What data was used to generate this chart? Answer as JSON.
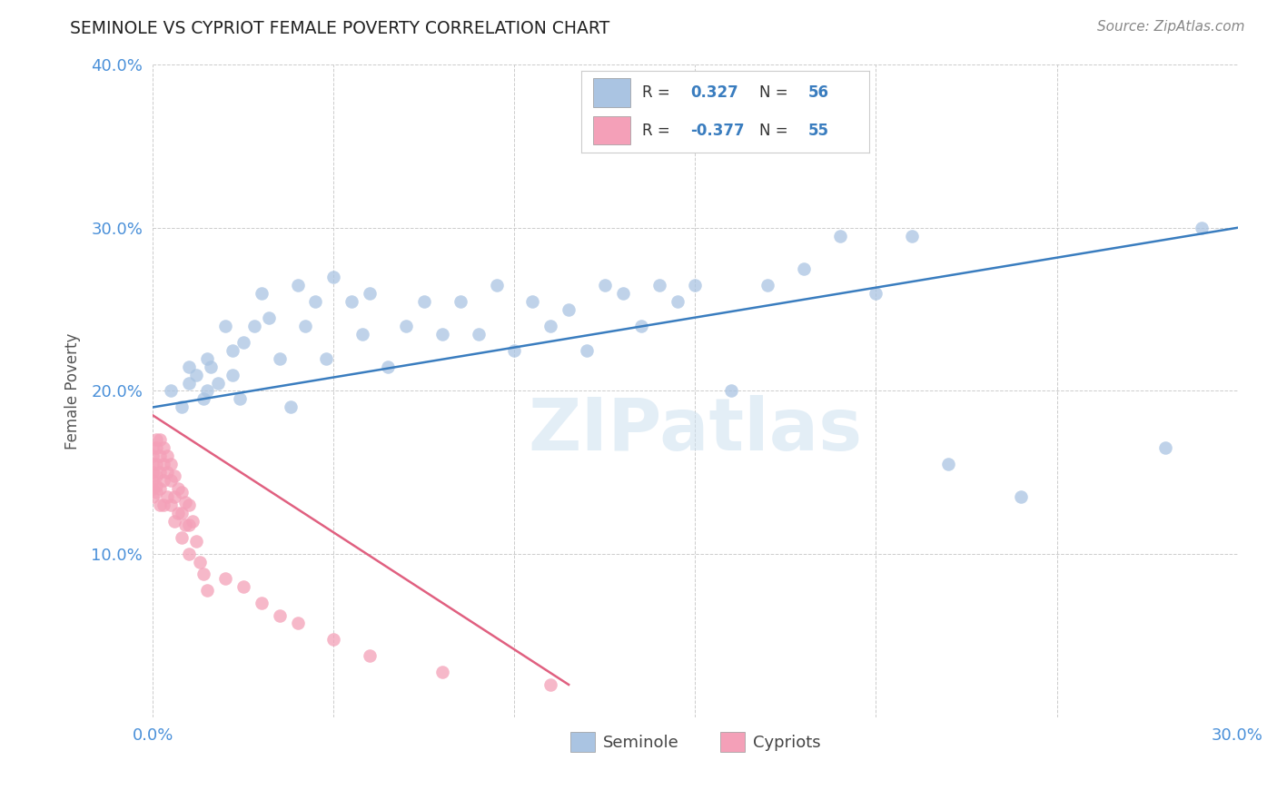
{
  "title": "SEMINOLE VS CYPRIOT FEMALE POVERTY CORRELATION CHART",
  "source": "Source: ZipAtlas.com",
  "ylabel": "Female Poverty",
  "watermark": "ZIPatlas",
  "xlim": [
    0.0,
    0.3
  ],
  "ylim": [
    0.0,
    0.4
  ],
  "seminole_color": "#aac4e2",
  "cypriot_color": "#f4a0b8",
  "seminole_line_color": "#3a7dbf",
  "cypriot_line_color": "#e06080",
  "seminole_R": 0.327,
  "seminole_N": 56,
  "cypriot_R": -0.377,
  "cypriot_N": 55,
  "background_color": "#ffffff",
  "seminole_x": [
    0.005,
    0.008,
    0.01,
    0.01,
    0.012,
    0.014,
    0.015,
    0.015,
    0.016,
    0.018,
    0.02,
    0.022,
    0.022,
    0.024,
    0.025,
    0.028,
    0.03,
    0.032,
    0.035,
    0.038,
    0.04,
    0.042,
    0.045,
    0.048,
    0.05,
    0.055,
    0.058,
    0.06,
    0.065,
    0.07,
    0.075,
    0.08,
    0.085,
    0.09,
    0.095,
    0.1,
    0.105,
    0.11,
    0.115,
    0.12,
    0.125,
    0.13,
    0.135,
    0.14,
    0.145,
    0.15,
    0.16,
    0.17,
    0.18,
    0.19,
    0.2,
    0.21,
    0.22,
    0.24,
    0.28,
    0.29
  ],
  "seminole_y": [
    0.2,
    0.19,
    0.215,
    0.205,
    0.21,
    0.195,
    0.22,
    0.2,
    0.215,
    0.205,
    0.24,
    0.225,
    0.21,
    0.195,
    0.23,
    0.24,
    0.26,
    0.245,
    0.22,
    0.19,
    0.265,
    0.24,
    0.255,
    0.22,
    0.27,
    0.255,
    0.235,
    0.26,
    0.215,
    0.24,
    0.255,
    0.235,
    0.255,
    0.235,
    0.265,
    0.225,
    0.255,
    0.24,
    0.25,
    0.225,
    0.265,
    0.26,
    0.24,
    0.265,
    0.255,
    0.265,
    0.2,
    0.265,
    0.275,
    0.295,
    0.26,
    0.295,
    0.155,
    0.135,
    0.165,
    0.3
  ],
  "cypriot_x": [
    0.0,
    0.0,
    0.0,
    0.0,
    0.0,
    0.0,
    0.0,
    0.001,
    0.001,
    0.001,
    0.001,
    0.001,
    0.001,
    0.002,
    0.002,
    0.002,
    0.002,
    0.002,
    0.003,
    0.003,
    0.003,
    0.003,
    0.004,
    0.004,
    0.004,
    0.005,
    0.005,
    0.005,
    0.006,
    0.006,
    0.006,
    0.007,
    0.007,
    0.008,
    0.008,
    0.008,
    0.009,
    0.009,
    0.01,
    0.01,
    0.01,
    0.011,
    0.012,
    0.013,
    0.014,
    0.015,
    0.02,
    0.025,
    0.03,
    0.035,
    0.04,
    0.05,
    0.06,
    0.08,
    0.11
  ],
  "cypriot_y": [
    0.165,
    0.16,
    0.155,
    0.15,
    0.145,
    0.14,
    0.135,
    0.17,
    0.165,
    0.155,
    0.148,
    0.142,
    0.138,
    0.17,
    0.16,
    0.15,
    0.14,
    0.13,
    0.165,
    0.155,
    0.145,
    0.13,
    0.16,
    0.15,
    0.135,
    0.155,
    0.145,
    0.13,
    0.148,
    0.135,
    0.12,
    0.14,
    0.125,
    0.138,
    0.125,
    0.11,
    0.132,
    0.118,
    0.13,
    0.118,
    0.1,
    0.12,
    0.108,
    0.095,
    0.088,
    0.078,
    0.085,
    0.08,
    0.07,
    0.062,
    0.058,
    0.048,
    0.038,
    0.028,
    0.02
  ],
  "sem_line_x": [
    0.0,
    0.3
  ],
  "sem_line_y": [
    0.19,
    0.3
  ],
  "cyp_line_x": [
    0.0,
    0.115
  ],
  "cyp_line_y": [
    0.185,
    0.02
  ]
}
